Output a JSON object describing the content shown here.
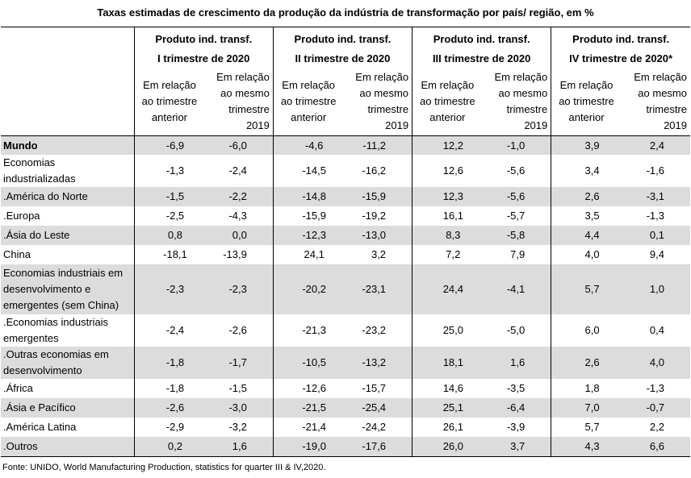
{
  "title": "Taxas estimadas de crescimento da produção da indústria de transformação por país/ região, em %",
  "quarters": [
    {
      "line1": "Produto ind. transf.",
      "line2": "I trimestre de 2020"
    },
    {
      "line1": "Produto ind. transf.",
      "line2": "II trimestre de 2020"
    },
    {
      "line1": "Produto ind. transf.",
      "line2": "III trimestre de 2020"
    },
    {
      "line1": "Produto ind. transf.",
      "line2": "IV trimestre de 2020*"
    }
  ],
  "sub": {
    "a1": "Em relação",
    "a2": "ao trimestre",
    "a3": "anterior",
    "b1": "Em relação",
    "b2": "ao mesmo",
    "b3": "trimestre",
    "b4": "2019"
  },
  "rows": [
    {
      "l1": "Mundo",
      "v": [
        "-6,9",
        "-6,0",
        "-4,6",
        "-11,2",
        "12,2",
        "-1,0",
        "3,9",
        "2,4"
      ]
    },
    {
      "l1": "Economias",
      "l2": "industrializadas",
      "v": [
        "-1,3",
        "-2,4",
        "-14,5",
        "-16,2",
        "12,6",
        "-5,6",
        "3,4",
        "-1,6"
      ]
    },
    {
      "l1": ".América do Norte",
      "v": [
        "-1,5",
        "-2,2",
        "-14,8",
        "-15,9",
        "12,3",
        "-5,6",
        "2,6",
        "-3,1"
      ]
    },
    {
      "l1": ".Europa",
      "v": [
        "-2,5",
        "-4,3",
        "-15,9",
        "-19,2",
        "16,1",
        "-5,7",
        "3,5",
        "-1,3"
      ]
    },
    {
      "l1": ".Ásia do Leste",
      "v": [
        "0,8",
        "0,0",
        "-12,3",
        "-13,0",
        "8,3",
        "-5,8",
        "4,4",
        "0,1"
      ]
    },
    {
      "l1": "China",
      "v": [
        "-18,1",
        "-13,9",
        "24,1",
        "3,2",
        "7,2",
        "7,9",
        "4,0",
        "9,4"
      ]
    },
    {
      "l1": "Economias industriais em",
      "l2": "desenvolvimento e",
      "l3": "emergentes (sem China)",
      "v": [
        "-2,3",
        "-2,3",
        "-20,2",
        "-23,1",
        "24,4",
        "-4,1",
        "5,7",
        "1,0"
      ]
    },
    {
      "l1": ".Economias industriais",
      "l2": "emergentes",
      "v": [
        "-2,4",
        "-2,6",
        "-21,3",
        "-23,2",
        "25,0",
        "-5,0",
        "6,0",
        "0,4"
      ]
    },
    {
      "l1": ".Outras economias em",
      "l2": "desenvolvimento",
      "v": [
        "-1,8",
        "-1,7",
        "-10,5",
        "-13,2",
        "18,1",
        "1,6",
        "2,6",
        "4,0"
      ]
    },
    {
      "l1": ".África",
      "v": [
        "-1,8",
        "-1,5",
        "-12,6",
        "-15,7",
        "14,6",
        "-3,5",
        "1,8",
        "-1,3"
      ]
    },
    {
      "l1": ".Ásia e Pacífico",
      "v": [
        "-2,6",
        "-3,0",
        "-21,5",
        "-25,4",
        "25,1",
        "-6,4",
        "7,0",
        "-0,7"
      ]
    },
    {
      "l1": ".América Latina",
      "v": [
        "-2,9",
        "-3,2",
        "-21,4",
        "-24,2",
        "26,1",
        "-3,9",
        "5,7",
        "2,2"
      ]
    },
    {
      "l1": ".Outros",
      "v": [
        "0,2",
        "1,6",
        "-19,0",
        "-17,6",
        "26,0",
        "3,7",
        "4,3",
        "6,6"
      ]
    }
  ],
  "source": "Fonte: UNIDO, World Manufacturing Production, statistics for quarter III & IV,2020."
}
